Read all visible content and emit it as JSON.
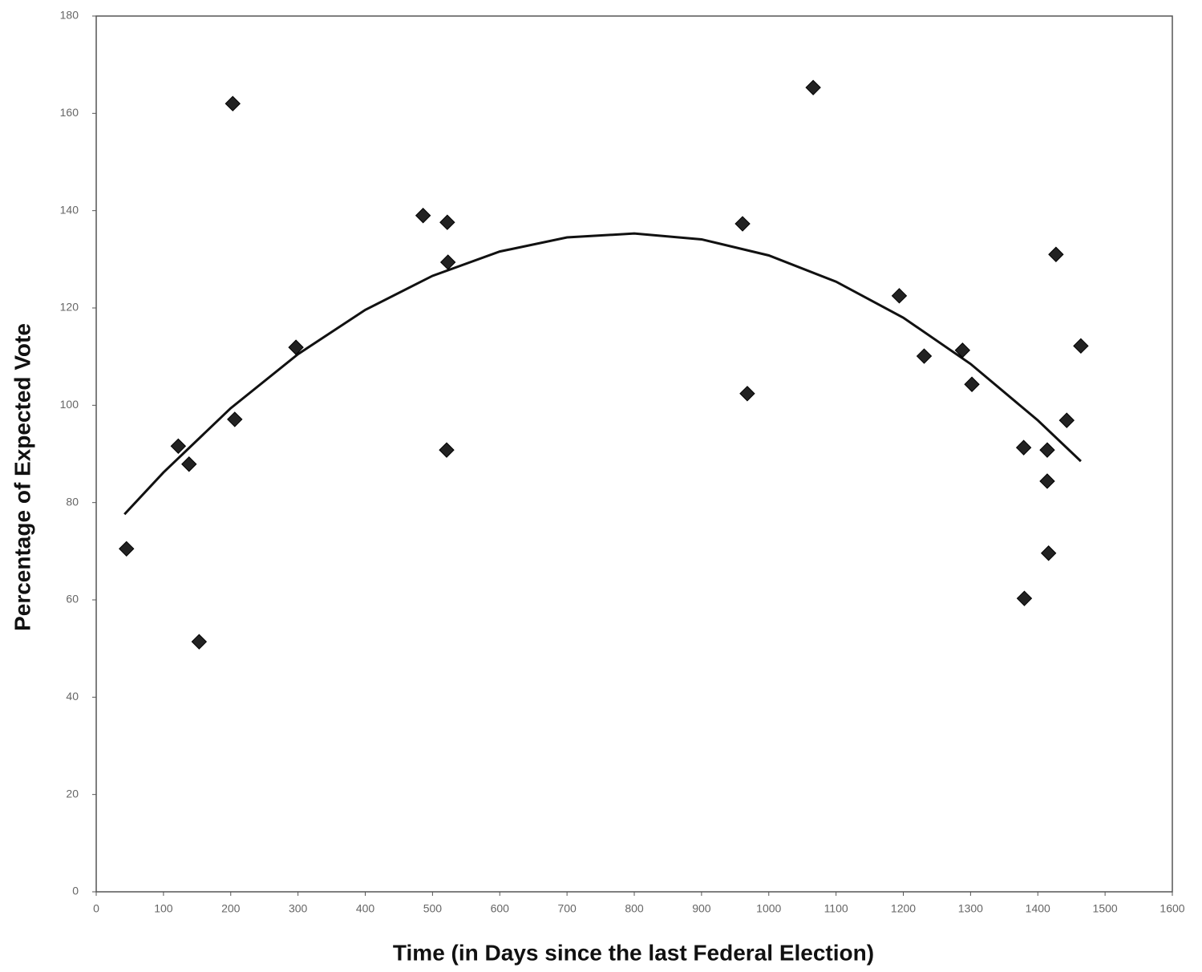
{
  "chart_data": {
    "type": "scatter",
    "x_label": "Time (in Days since the last Federal Election)",
    "y_label": "Percentage of Expected Vote",
    "series": [
      {
        "color": "#222222",
        "x": [
          45,
          122,
          138,
          153,
          203,
          206,
          297,
          486,
          522,
          523,
          521,
          961,
          968,
          1066,
          1194,
          1231,
          1288,
          1302,
          1379,
          1380,
          1414,
          1414,
          1416,
          1427,
          1443,
          1464
        ],
        "values": [
          70.5,
          91.6,
          87.9,
          51.4,
          162,
          97.1,
          111.9,
          139,
          137.6,
          129.4,
          90.8,
          137.3,
          102.4,
          165.3,
          122.5,
          110.1,
          111.3,
          104.3,
          91.3,
          60.3,
          90.8,
          84.4,
          69.6,
          131,
          96.9,
          112.2
        ]
      }
    ],
    "trendline": {
      "color": "#111111",
      "x": [
        42,
        100,
        200,
        300,
        400,
        500,
        600,
        700,
        800,
        900,
        1000,
        1100,
        1200,
        1300,
        1400,
        1464
      ],
      "values": [
        77.6,
        86.2,
        99.4,
        110.5,
        119.6,
        126.6,
        131.6,
        134.5,
        135.3,
        134.1,
        130.8,
        125.4,
        118,
        108.5,
        96.9,
        88.5
      ]
    },
    "xlim": [
      0,
      1600
    ],
    "ylim": [
      0,
      180
    ],
    "xticks": [
      0,
      100,
      200,
      300,
      400,
      500,
      600,
      700,
      800,
      900,
      1000,
      1100,
      1200,
      1300,
      1400,
      1500,
      1600
    ],
    "yticks": [
      0,
      20,
      40,
      60,
      80,
      100,
      120,
      140,
      160,
      180
    ]
  }
}
